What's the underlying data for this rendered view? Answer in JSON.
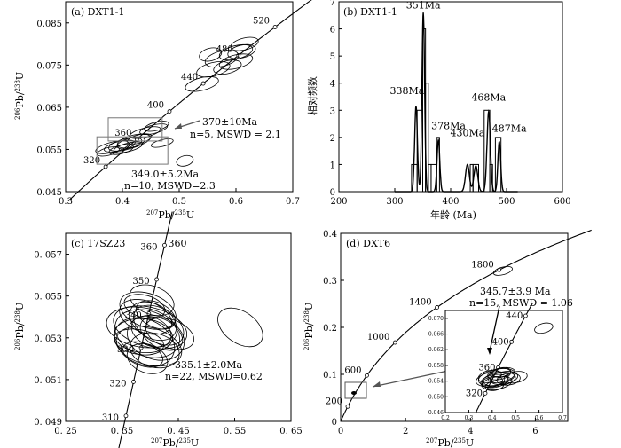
{
  "chart_data": [
    {
      "type": "scatter",
      "panel": "a",
      "title": "(a)  DXT1-1",
      "xlabel": "207Pb/235U",
      "ylabel": "206Pb/238U",
      "xlim": [
        0.3,
        0.7
      ],
      "ylim": [
        0.045,
        0.09
      ],
      "xticks": [
        "0.3",
        "0.4",
        "0.5",
        "0.6",
        "0.7"
      ],
      "yticks": [
        "0.045",
        "0.055",
        "0.065",
        "0.075",
        "0.085"
      ],
      "concordia_labels": [
        "320",
        "360",
        "400",
        "440",
        "480",
        "520"
      ],
      "ellipses": [
        {
          "x": 0.382,
          "y": 0.0555,
          "rx": 0.03,
          "ry": 0.0012
        },
        {
          "x": 0.395,
          "y": 0.0558,
          "rx": 0.028,
          "ry": 0.0011
        },
        {
          "x": 0.405,
          "y": 0.0562,
          "rx": 0.03,
          "ry": 0.0013
        },
        {
          "x": 0.415,
          "y": 0.0565,
          "rx": 0.025,
          "ry": 0.0012
        },
        {
          "x": 0.41,
          "y": 0.0555,
          "rx": 0.026,
          "ry": 0.001
        },
        {
          "x": 0.42,
          "y": 0.057,
          "rx": 0.03,
          "ry": 0.0014
        },
        {
          "x": 0.398,
          "y": 0.055,
          "rx": 0.022,
          "ry": 0.001
        },
        {
          "x": 0.375,
          "y": 0.0545,
          "rx": 0.02,
          "ry": 0.0009
        },
        {
          "x": 0.43,
          "y": 0.0575,
          "rx": 0.022,
          "ry": 0.001
        },
        {
          "x": 0.44,
          "y": 0.059,
          "rx": 0.028,
          "ry": 0.0011
        },
        {
          "x": 0.455,
          "y": 0.0598,
          "rx": 0.025,
          "ry": 0.001
        },
        {
          "x": 0.46,
          "y": 0.0605,
          "rx": 0.022,
          "ry": 0.001
        },
        {
          "x": 0.47,
          "y": 0.0565,
          "rx": 0.02,
          "ry": 0.0008
        },
        {
          "x": 0.51,
          "y": 0.0523,
          "rx": 0.015,
          "ry": 0.0012
        },
        {
          "x": 0.54,
          "y": 0.0705,
          "rx": 0.03,
          "ry": 0.0015
        },
        {
          "x": 0.56,
          "y": 0.074,
          "rx": 0.03,
          "ry": 0.0016
        },
        {
          "x": 0.575,
          "y": 0.0765,
          "rx": 0.03,
          "ry": 0.0018
        },
        {
          "x": 0.585,
          "y": 0.0745,
          "rx": 0.025,
          "ry": 0.0015
        },
        {
          "x": 0.6,
          "y": 0.078,
          "rx": 0.03,
          "ry": 0.0016
        },
        {
          "x": 0.555,
          "y": 0.0775,
          "rx": 0.02,
          "ry": 0.0015
        },
        {
          "x": 0.6,
          "y": 0.0758,
          "rx": 0.03,
          "ry": 0.0016
        },
        {
          "x": 0.61,
          "y": 0.0782,
          "rx": 0.025,
          "ry": 0.0015
        },
        {
          "x": 0.615,
          "y": 0.08,
          "rx": 0.025,
          "ry": 0.0014
        }
      ],
      "annotations": [
        "370±10Ma",
        "n=5, MSWD = 2.1",
        "349.0±5.2Ma",
        "n=10, MSWD=2.3"
      ]
    },
    {
      "type": "bar",
      "panel": "b",
      "title": "(b)  DXT1-1",
      "xlabel": "年龄 (Ma)",
      "ylabel": "相对频数",
      "xlim": [
        200,
        600
      ],
      "ylim": [
        0,
        7
      ],
      "xticks": [
        "200",
        "300",
        "400",
        "500",
        "600"
      ],
      "yticks": [
        "0",
        "1",
        "2",
        "3",
        "4",
        "5",
        "6",
        "7"
      ],
      "bins": [
        {
          "x0": 330,
          "x1": 340,
          "v": 1
        },
        {
          "x0": 340,
          "x1": 350,
          "v": 3
        },
        {
          "x0": 350,
          "x1": 355,
          "v": 6
        },
        {
          "x0": 355,
          "x1": 360,
          "v": 4
        },
        {
          "x0": 360,
          "x1": 365,
          "v": 1
        },
        {
          "x0": 365,
          "x1": 375,
          "v": 1
        },
        {
          "x0": 375,
          "x1": 380,
          "v": 2
        },
        {
          "x0": 435,
          "x1": 440,
          "v": 1
        },
        {
          "x0": 440,
          "x1": 450,
          "v": 1
        },
        {
          "x0": 460,
          "x1": 470,
          "v": 3
        },
        {
          "x0": 470,
          "x1": 475,
          "v": 1
        },
        {
          "x0": 480,
          "x1": 490,
          "v": 2
        }
      ],
      "curve_peaks": [
        {
          "x": 338,
          "h": 3.15,
          "w": 2.5
        },
        {
          "x": 351,
          "h": 6.6,
          "w": 2.4
        },
        {
          "x": 378,
          "h": 1.9,
          "w": 2.5
        },
        {
          "x": 430,
          "h": 1.0,
          "w": 3.5
        },
        {
          "x": 445,
          "h": 0.95,
          "w": 3.5
        },
        {
          "x": 468,
          "h": 2.95,
          "w": 3.0
        },
        {
          "x": 487,
          "h": 1.85,
          "w": 2.5
        }
      ],
      "peak_labels": [
        "351Ma",
        "338Ma",
        "378Ma",
        "430Ma",
        "468Ma",
        "487Ma"
      ]
    },
    {
      "type": "scatter",
      "panel": "c",
      "title": "(c) 17SZ23",
      "xlabel": "207Pb/235U",
      "ylabel": "206Pb/238U",
      "xlim": [
        0.25,
        0.65
      ],
      "ylim": [
        0.049,
        0.058
      ],
      "xticks": [
        "0. 25",
        "0. 35",
        "0. 45",
        "0. 55",
        "0. 65"
      ],
      "yticks": [
        "0. 049",
        "0. 051",
        "0. 053",
        "0. 055",
        "0. 057"
      ],
      "concordia_labels": [
        "310",
        "320",
        "330",
        "340",
        "350",
        "360"
      ],
      "ellipses": [
        {
          "x": 0.395,
          "y": 0.0532,
          "rx": 0.04,
          "ry": 0.0016,
          "rot": -70
        },
        {
          "x": 0.4,
          "y": 0.0535,
          "rx": 0.035,
          "ry": 0.0018,
          "rot": -75
        },
        {
          "x": 0.39,
          "y": 0.0528,
          "rx": 0.04,
          "ry": 0.0015,
          "rot": -65
        },
        {
          "x": 0.405,
          "y": 0.0538,
          "rx": 0.03,
          "ry": 0.0012,
          "rot": -60
        },
        {
          "x": 0.385,
          "y": 0.0535,
          "rx": 0.035,
          "ry": 0.0017,
          "rot": -80
        },
        {
          "x": 0.41,
          "y": 0.053,
          "rx": 0.038,
          "ry": 0.0014,
          "rot": -70
        },
        {
          "x": 0.392,
          "y": 0.054,
          "rx": 0.028,
          "ry": 0.0013,
          "rot": -70
        },
        {
          "x": 0.398,
          "y": 0.0526,
          "rx": 0.033,
          "ry": 0.0016,
          "rot": -75
        },
        {
          "x": 0.402,
          "y": 0.0533,
          "rx": 0.025,
          "ry": 0.001,
          "rot": -65
        },
        {
          "x": 0.388,
          "y": 0.0531,
          "rx": 0.03,
          "ry": 0.0014,
          "rot": -85
        },
        {
          "x": 0.415,
          "y": 0.0536,
          "rx": 0.03,
          "ry": 0.0013,
          "rot": -60
        },
        {
          "x": 0.396,
          "y": 0.0543,
          "rx": 0.03,
          "ry": 0.0014,
          "rot": -70
        },
        {
          "x": 0.408,
          "y": 0.0524,
          "rx": 0.03,
          "ry": 0.0012,
          "rot": -75
        },
        {
          "x": 0.38,
          "y": 0.0528,
          "rx": 0.022,
          "ry": 0.0012,
          "rot": -80
        },
        {
          "x": 0.42,
          "y": 0.0532,
          "rx": 0.025,
          "ry": 0.0011,
          "rot": -60
        },
        {
          "x": 0.39,
          "y": 0.0545,
          "rx": 0.02,
          "ry": 0.001,
          "rot": -75
        },
        {
          "x": 0.403,
          "y": 0.0548,
          "rx": 0.025,
          "ry": 0.0011,
          "rot": -70
        },
        {
          "x": 0.395,
          "y": 0.052,
          "rx": 0.025,
          "ry": 0.001,
          "rot": -70
        },
        {
          "x": 0.41,
          "y": 0.0541,
          "rx": 0.022,
          "ry": 0.001,
          "rot": -65
        },
        {
          "x": 0.387,
          "y": 0.0522,
          "rx": 0.02,
          "ry": 0.001,
          "rot": -70
        },
        {
          "x": 0.435,
          "y": 0.0532,
          "rx": 0.025,
          "ry": 0.0012,
          "rot": -70
        },
        {
          "x": 0.56,
          "y": 0.0535,
          "rx": 0.028,
          "ry": 0.0012,
          "rot": -55
        }
      ],
      "annotations": [
        "335.1±2.0Ma",
        "n=22, MSWD=0.62"
      ]
    },
    {
      "type": "scatter",
      "panel": "d",
      "title": "(d)  DXT6",
      "xlabel": "207Pb/235U",
      "ylabel": "206Pb/238U",
      "xlim": [
        0,
        7
      ],
      "ylim": [
        0,
        0.4
      ],
      "xticks": [
        "0",
        "2",
        "4",
        "6"
      ],
      "yticks": [
        "0",
        "0.1",
        "0.2",
        "0.3",
        "0.4"
      ],
      "concordia_labels": [
        "200",
        "600",
        "1000",
        "1400",
        "1800"
      ],
      "ellipses": [
        {
          "x": 5.0,
          "y": 0.32,
          "rx": 0.3,
          "ry": 0.008,
          "rot": -15
        }
      ],
      "annotations": [
        "345.7±3.9 Ma",
        "n=15, MSWD = 1.06"
      ],
      "inset": {
        "xlim": [
          0.2,
          0.7
        ],
        "ylim": [
          0.046,
          0.072
        ],
        "xticks": [
          "0.2",
          "0.3",
          "0.4",
          "0.5",
          "0.6",
          "0.7"
        ],
        "yticks": [
          "0.046",
          "0.050",
          "0.054",
          "0.058",
          "0.062",
          "0.066",
          "0.070"
        ],
        "concordia_labels": [
          "320",
          "360",
          "400",
          "440"
        ],
        "ellipses": [
          {
            "x": 0.4,
            "y": 0.0545,
            "rx": 0.07,
            "ry": 0.0018,
            "rot": -10
          },
          {
            "x": 0.42,
            "y": 0.055,
            "rx": 0.08,
            "ry": 0.002,
            "rot": -12
          },
          {
            "x": 0.43,
            "y": 0.0545,
            "rx": 0.07,
            "ry": 0.0017,
            "rot": -8
          },
          {
            "x": 0.41,
            "y": 0.054,
            "rx": 0.06,
            "ry": 0.0016,
            "rot": -10
          },
          {
            "x": 0.44,
            "y": 0.0555,
            "rx": 0.06,
            "ry": 0.0018,
            "rot": -15
          },
          {
            "x": 0.42,
            "y": 0.0535,
            "rx": 0.065,
            "ry": 0.0016,
            "rot": -10
          },
          {
            "x": 0.45,
            "y": 0.0548,
            "rx": 0.06,
            "ry": 0.0016,
            "rot": -10
          },
          {
            "x": 0.39,
            "y": 0.0552,
            "rx": 0.05,
            "ry": 0.0015,
            "rot": -12
          },
          {
            "x": 0.43,
            "y": 0.0558,
            "rx": 0.05,
            "ry": 0.0014,
            "rot": -10
          },
          {
            "x": 0.47,
            "y": 0.0545,
            "rx": 0.05,
            "ry": 0.0015,
            "rot": -8
          },
          {
            "x": 0.4,
            "y": 0.0538,
            "rx": 0.045,
            "ry": 0.0013,
            "rot": -10
          },
          {
            "x": 0.5,
            "y": 0.055,
            "rx": 0.05,
            "ry": 0.0014,
            "rot": -10
          },
          {
            "x": 0.44,
            "y": 0.0562,
            "rx": 0.04,
            "ry": 0.0012,
            "rot": -10
          },
          {
            "x": 0.41,
            "y": 0.0528,
            "rx": 0.04,
            "ry": 0.0012,
            "rot": -10
          },
          {
            "x": 0.62,
            "y": 0.0675,
            "rx": 0.04,
            "ry": 0.0012,
            "rot": -15
          }
        ]
      }
    }
  ]
}
